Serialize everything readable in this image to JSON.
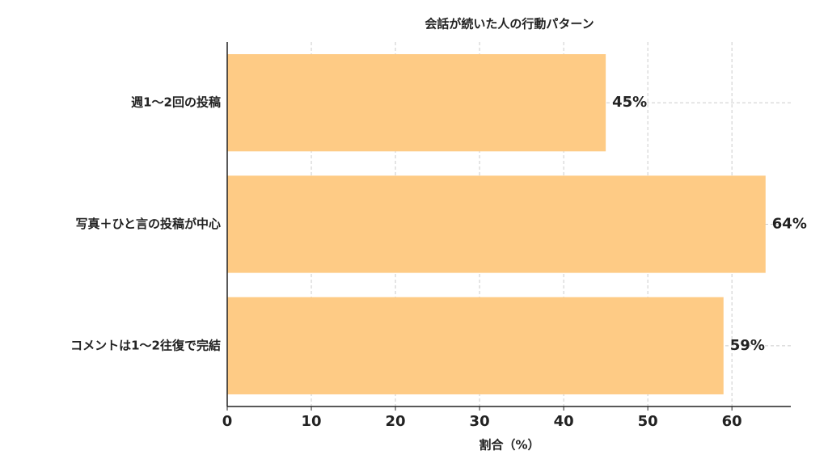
{
  "chart_data": {
    "type": "barh",
    "title": "会話が続いた人の行動パターン",
    "x_label": "割合（%）",
    "categories": [
      "週1〜2回の投稿",
      "写真＋ひと言の投稿が中心",
      "コメントは1〜2往復で完結"
    ],
    "values": [
      45,
      64,
      59
    ],
    "value_labels": [
      "45%",
      "64%",
      "59%"
    ],
    "color": "#fecb85",
    "xlim": [
      0,
      67
    ],
    "xticks": [
      0,
      10,
      20,
      30,
      40,
      50,
      60
    ],
    "grid": true
  }
}
